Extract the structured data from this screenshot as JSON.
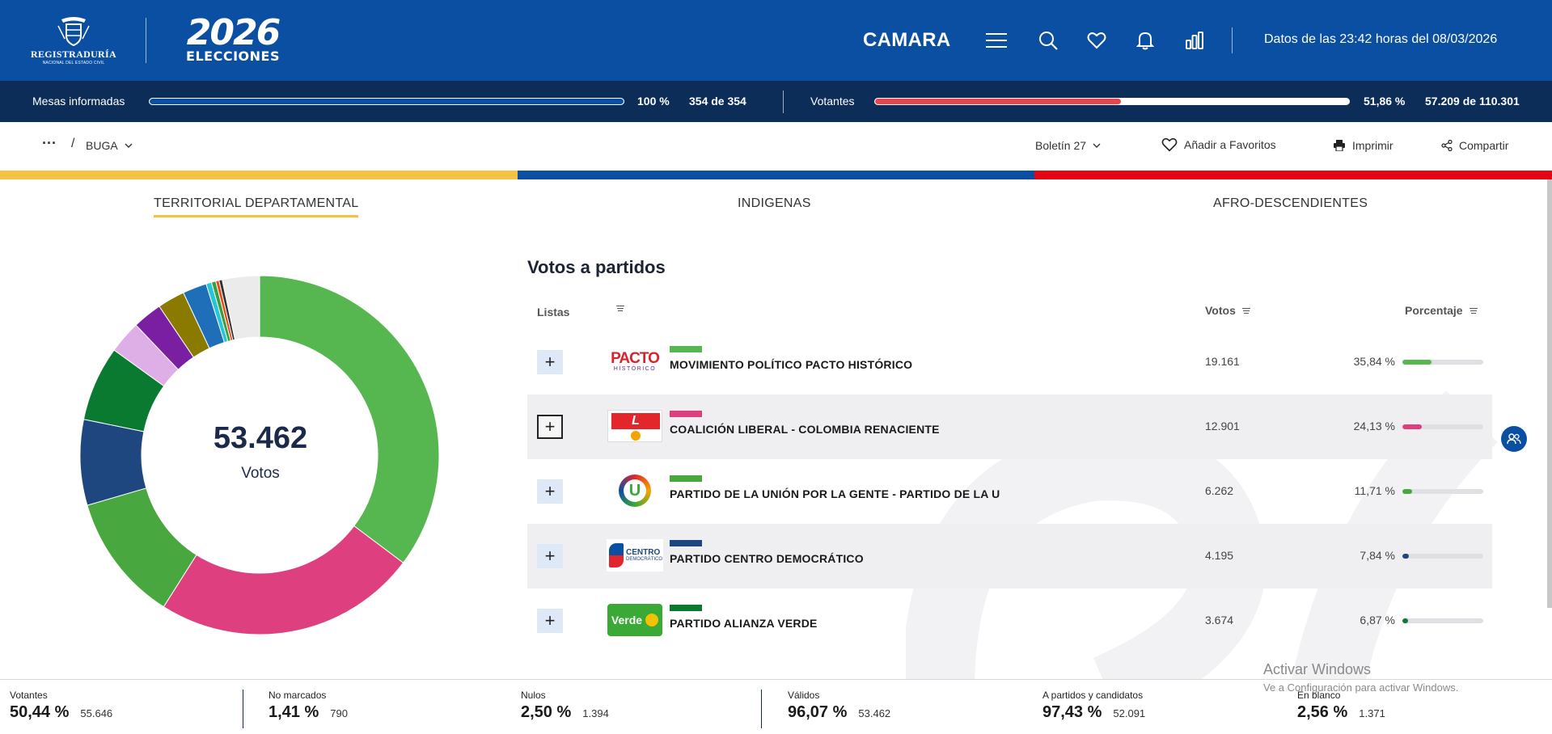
{
  "header": {
    "registraduria_line1": "REGISTRADURÍA",
    "registraduria_line2": "NACIONAL DEL ESTADO CIVIL",
    "event_year": "2026",
    "event_name": "ELECCIONES",
    "corporation": "CAMARA",
    "data_timestamp": "Datos de las 23:42 horas del 08/03/2026",
    "icons": [
      "menu-icon",
      "search-icon",
      "heart-icon",
      "bell-icon",
      "bar-chart-icon"
    ]
  },
  "progress": {
    "mesas_label": "Mesas informadas",
    "mesas_pct_value": 100,
    "mesas_pct": "100 %",
    "mesas_count": "354 de 354",
    "votantes_label": "Votantes",
    "votantes_pct_value": 51.86,
    "votantes_pct": "51,86 %",
    "votantes_count": "57.209 de 110.301",
    "mesas_color": "#0b4fa3",
    "votantes_color": "#e5474f"
  },
  "toolbar": {
    "more_label": "···",
    "separator": "/",
    "location": "BUGA",
    "boletin": "Boletín 27",
    "favorites": "Añadir a Favoritos",
    "print": "Imprimir",
    "share": "Compartir"
  },
  "tricolor": [
    "#f5c342",
    "#0b4fa3",
    "#e30613"
  ],
  "tabs": [
    {
      "label": "TERRITORIAL DEPARTAMENTAL",
      "active": true
    },
    {
      "label": "INDIGENAS",
      "active": false
    },
    {
      "label": "AFRO-DESCENDIENTES",
      "active": false
    }
  ],
  "donut": {
    "total": "53.462",
    "label": "Votos",
    "segments": [
      {
        "value": 35.84,
        "color": "#56b650"
      },
      {
        "value": 24.13,
        "color": "#dd3f7f"
      },
      {
        "value": 11.71,
        "color": "#48a83f"
      },
      {
        "value": 7.84,
        "color": "#1f477f"
      },
      {
        "value": 6.87,
        "color": "#0a7a30"
      },
      {
        "value": 3.0,
        "color": "#deaee6"
      },
      {
        "value": 2.7,
        "color": "#7b1fa2"
      },
      {
        "value": 2.5,
        "color": "#8a7a00"
      },
      {
        "value": 2.2,
        "color": "#1f6fb8"
      },
      {
        "value": 0.5,
        "color": "#26c6da"
      },
      {
        "value": 0.4,
        "color": "#3c9e3c"
      },
      {
        "value": 0.3,
        "color": "#e64a19"
      },
      {
        "value": 0.3,
        "color": "#333333"
      },
      {
        "value": 3.4,
        "color": "#ebebeb"
      }
    ]
  },
  "table": {
    "title": "Votos a partidos",
    "col_lists": "Listas",
    "col_votes": "Votos",
    "col_pct": "Porcentaje",
    "rows": [
      {
        "name": "MOVIMIENTO POLÍTICO PACTO HISTÓRICO",
        "votes": "19.161",
        "pct": "35,84 %",
        "pct_value": 35.84,
        "color": "#56b650",
        "logo": "pacto-historico-logo"
      },
      {
        "name": "COALICIÓN LIBERAL - COLOMBIA RENACIENTE",
        "votes": "12.901",
        "pct": "24,13 %",
        "pct_value": 24.13,
        "color": "#dd3f7f",
        "logo": "partido-liberal-logo"
      },
      {
        "name": "PARTIDO DE LA UNIÓN POR LA GENTE - PARTIDO DE LA U",
        "votes": "6.262",
        "pct": "11,71 %",
        "pct_value": 11.71,
        "color": "#48a83f",
        "logo": "partido-u-logo"
      },
      {
        "name": "PARTIDO CENTRO DEMOCRÁTICO",
        "votes": "4.195",
        "pct": "7,84 %",
        "pct_value": 7.84,
        "color": "#1f477f",
        "logo": "centro-democratico-logo"
      },
      {
        "name": "PARTIDO ALIANZA VERDE",
        "votes": "3.674",
        "pct": "6,87 %",
        "pct_value": 6.87,
        "color": "#0a7a30",
        "logo": "alianza-verde-logo"
      }
    ]
  },
  "logos": {
    "pacto_word": "PACTO",
    "pacto_sub": "HISTÓRICO",
    "cd_word": "CENTRO",
    "cd_sub": "DEMOCRÁTICO",
    "verde_word": "Verde",
    "u_letter": "U",
    "liberal_letter": "L"
  },
  "bottom_stats": [
    {
      "label": "Votantes",
      "pct": "50,44 %",
      "count": "55.646"
    },
    {
      "label": "No marcados",
      "pct": "1,41 %",
      "count": "790"
    },
    {
      "label": "Nulos",
      "pct": "2,50 %",
      "count": "1.394"
    },
    {
      "label": "Válidos",
      "pct": "96,07 %",
      "count": "53.462"
    },
    {
      "label": "A partidos y candidatos",
      "pct": "97,43 %",
      "count": "52.091"
    },
    {
      "label": "En blanco",
      "pct": "2,56 %",
      "count": "1.371"
    }
  ],
  "windows_notice": {
    "line1": "Activar Windows",
    "line2": "Ve a Configuración para activar Windows."
  }
}
